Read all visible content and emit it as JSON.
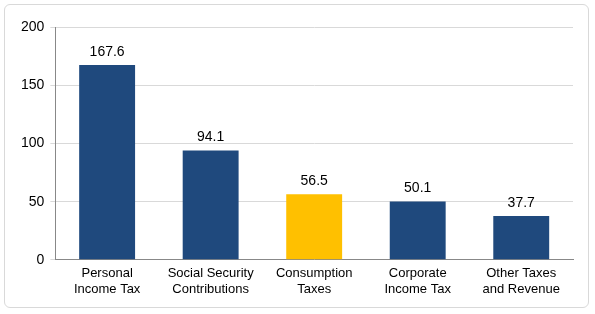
{
  "chart_data": {
    "type": "bar",
    "categories": [
      "Personal Income Tax",
      "Social Security Contributions",
      "Consumption Taxes",
      "Corporate Income Tax",
      "Other Taxes and Revenue"
    ],
    "values": [
      167.6,
      94.1,
      56.5,
      50.1,
      37.7
    ],
    "colors": [
      "#1f497d",
      "#1f497d",
      "#ffc000",
      "#1f497d",
      "#1f497d"
    ],
    "ylim": [
      0,
      200
    ],
    "yticks": [
      0,
      50,
      100,
      150,
      200
    ],
    "grid": true,
    "data_labels": true
  }
}
